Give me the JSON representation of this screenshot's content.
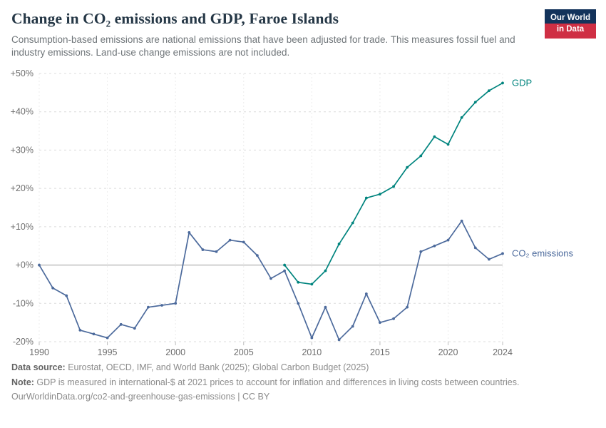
{
  "header": {
    "title": "Change in CO₂ emissions and GDP, Faroe Islands",
    "subtitle": "Consumption-based emissions are national emissions that have been adjusted for trade. This measures fossil fuel and industry emissions. Land-use change emissions are not included."
  },
  "logo": {
    "line1": "Our World",
    "line2": "in Data"
  },
  "footer": {
    "source_label": "Data source:",
    "source_text": " Eurostat, OECD, IMF, and World Bank (2025); Global Carbon Budget (2025)",
    "note_label": "Note:",
    "note_text": " GDP is measured in international-$ at 2021 prices to account for inflation and differences in living costs between countries.",
    "url": "OurWorldinData.org/co2-and-greenhouse-gas-emissions",
    "license": " | CC BY"
  },
  "chart_data": {
    "type": "line",
    "title": "Change in CO₂ emissions and GDP, Faroe Islands",
    "xlabel": "",
    "ylabel": "",
    "xlim": [
      1990,
      2024
    ],
    "ylim": [
      -20,
      50
    ],
    "grid": true,
    "legend_position": "right-of-line-ends",
    "y_ticks": [
      50,
      40,
      30,
      20,
      10,
      0,
      -10,
      -20
    ],
    "y_tick_labels": [
      "+50%",
      "+40%",
      "+30%",
      "+20%",
      "+10%",
      "+0%",
      "-10%",
      "-20%"
    ],
    "x_ticks": [
      1990,
      1995,
      2000,
      2005,
      2010,
      2015,
      2020,
      2024
    ],
    "colors": {
      "gdp": "#00847e",
      "co2": "#4c6a9c",
      "gridline": "#dcdcdc",
      "zero_line": "#9c9c9c",
      "axis_text": "#6e6e6e"
    },
    "series": [
      {
        "name": "GDP",
        "color": "#00847e",
        "x": [
          2008,
          2009,
          2010,
          2011,
          2012,
          2013,
          2014,
          2015,
          2016,
          2017,
          2018,
          2019,
          2020,
          2021,
          2022,
          2023,
          2024
        ],
        "values": [
          0,
          -4.5,
          -5,
          -1.5,
          5.5,
          11,
          17.5,
          18.5,
          20.5,
          25.5,
          28.5,
          33.5,
          31.5,
          38.5,
          42.5,
          45.5,
          47.5
        ]
      },
      {
        "name": "CO₂ emissions",
        "color": "#4c6a9c",
        "x": [
          1990,
          1991,
          1992,
          1993,
          1994,
          1995,
          1996,
          1997,
          1998,
          1999,
          2000,
          2001,
          2002,
          2003,
          2004,
          2005,
          2006,
          2007,
          2008,
          2009,
          2010,
          2011,
          2012,
          2013,
          2014,
          2015,
          2016,
          2017,
          2018,
          2019,
          2020,
          2021,
          2022,
          2023,
          2024
        ],
        "values": [
          0,
          -6,
          -8,
          -17,
          -18,
          -19,
          -15.5,
          -16.5,
          -11,
          -10.5,
          -10,
          8.5,
          4,
          3.5,
          6.5,
          6,
          2.5,
          -3.5,
          -1.5,
          -10,
          -19,
          -11,
          -19.5,
          -16,
          -7.5,
          -15,
          -14,
          -11,
          3.5,
          5,
          6.5,
          11.5,
          4.5,
          1.5,
          3
        ]
      }
    ]
  }
}
